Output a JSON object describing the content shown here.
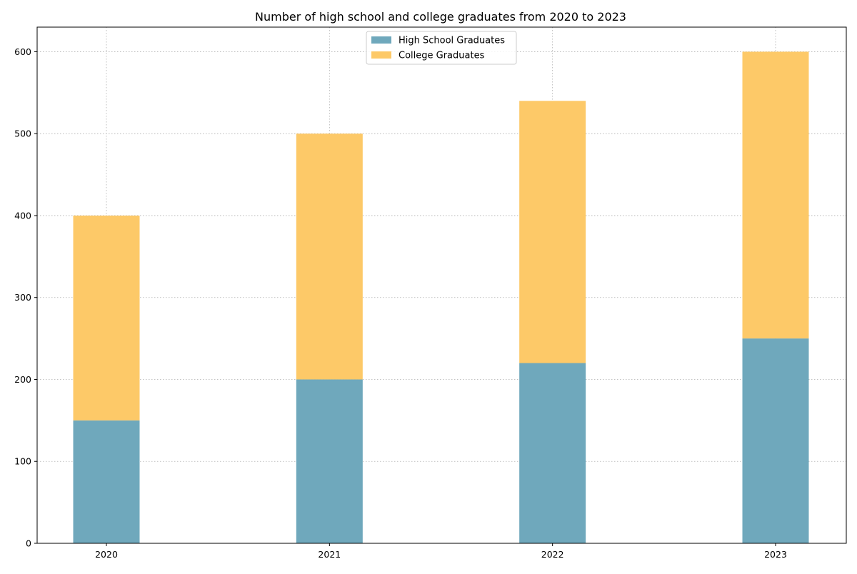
{
  "chart_data": {
    "type": "bar",
    "stacked": true,
    "title": "Number of high school and college graduates from 2020 to 2023",
    "xlabel": "",
    "ylabel": "",
    "categories": [
      "2020",
      "2021",
      "2022",
      "2023"
    ],
    "series": [
      {
        "name": "High School Graduates",
        "values": [
          150,
          200,
          220,
          250
        ],
        "color": "#6fa8bc"
      },
      {
        "name": "College Graduates",
        "values": [
          250,
          300,
          320,
          350
        ],
        "color": "#fdc968"
      }
    ],
    "ylim": [
      0,
      630
    ],
    "yticks": [
      0,
      100,
      200,
      300,
      400,
      500,
      600
    ],
    "grid": true,
    "legend_position": "top-center"
  }
}
